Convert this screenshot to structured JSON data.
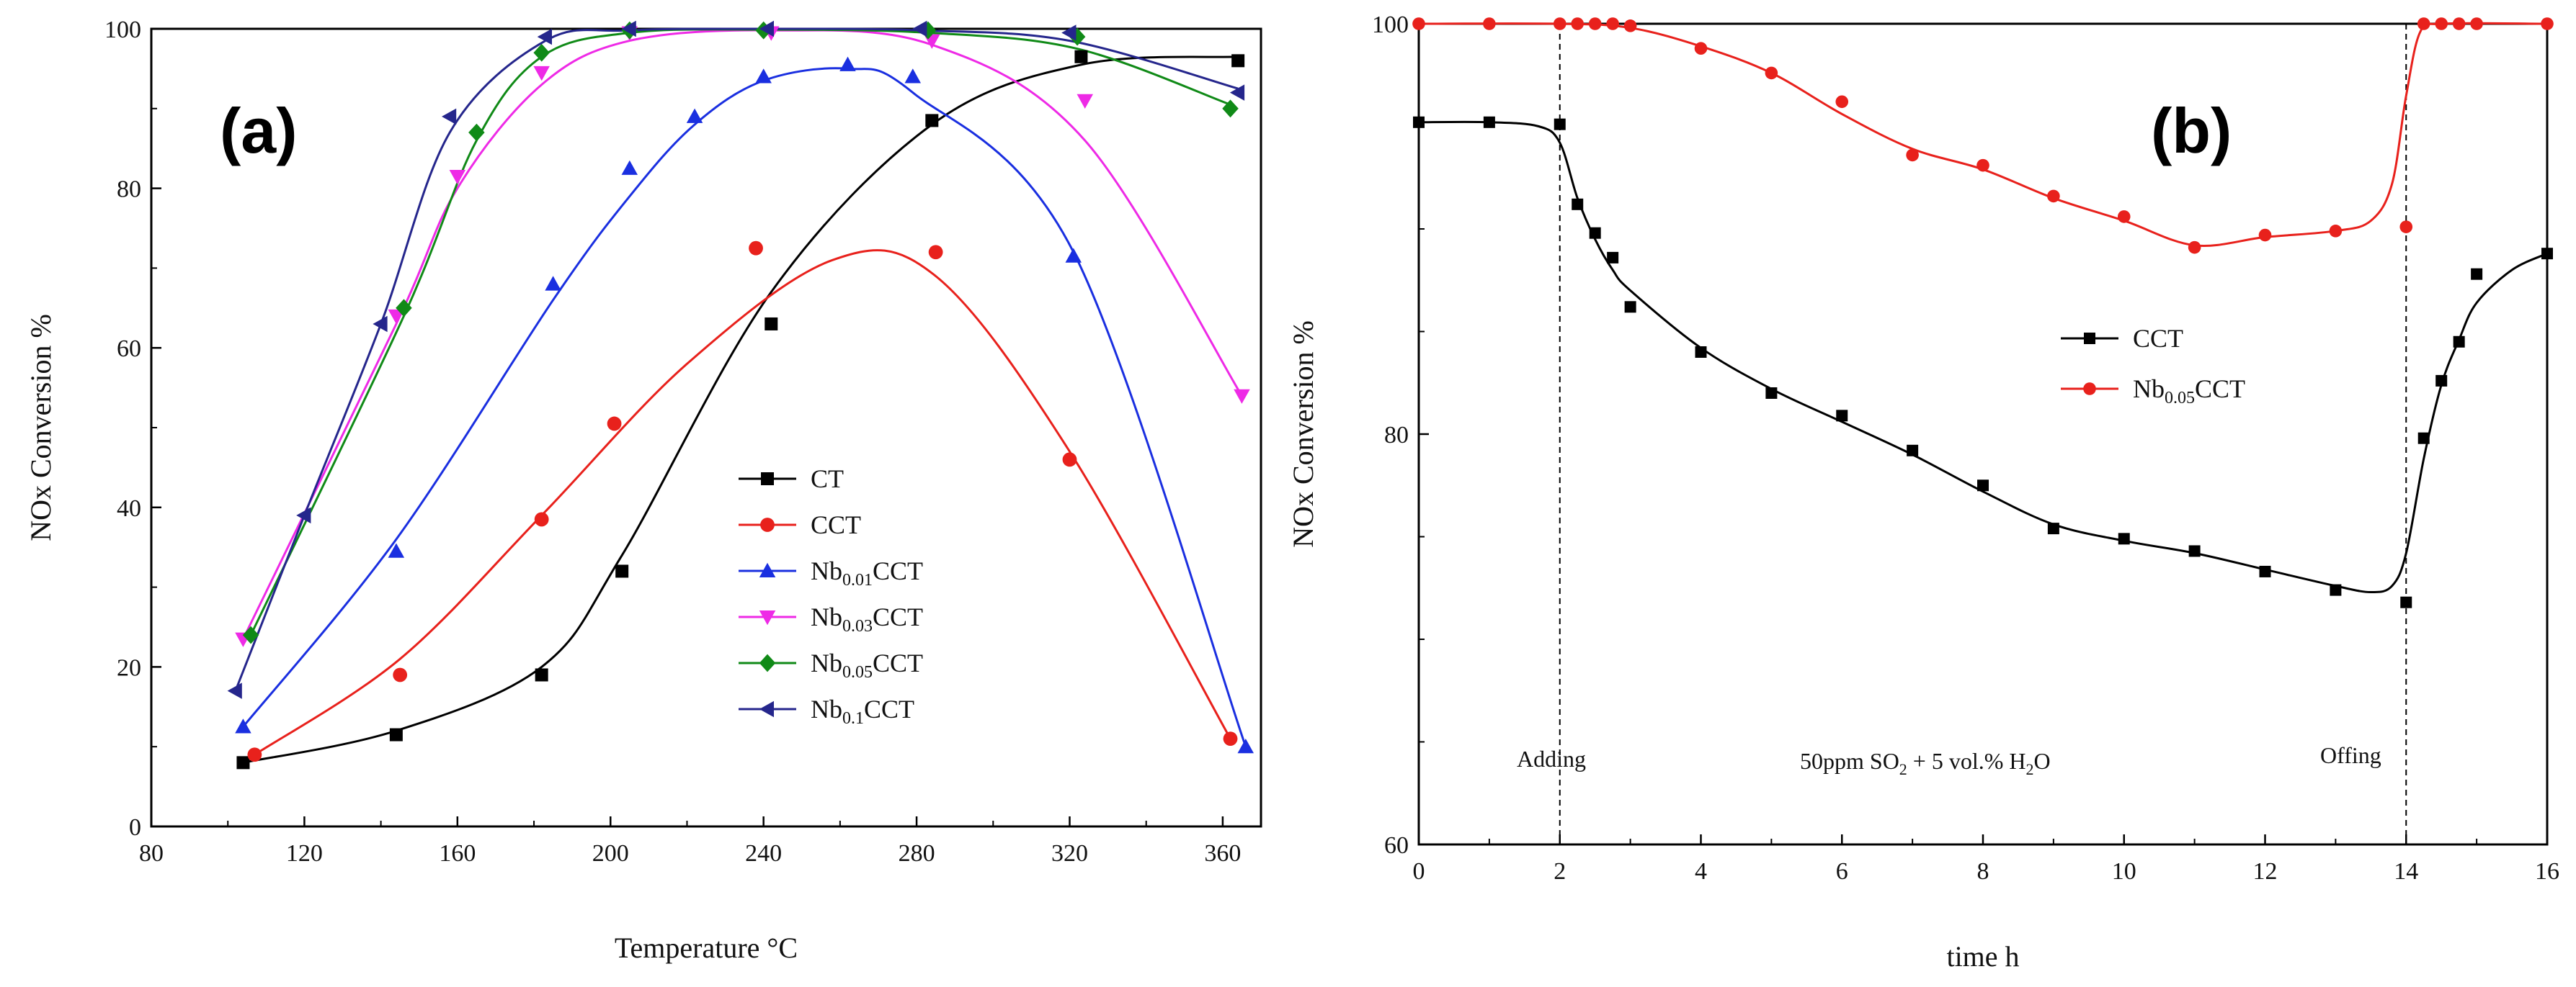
{
  "chart_data": [
    {
      "type": "line",
      "panel_label": "(a)",
      "title": "",
      "xlabel": "Temperature °C",
      "ylabel": "NOx Conversion %",
      "xlim": [
        80,
        370
      ],
      "ylim": [
        0,
        100
      ],
      "xticks": [
        80,
        120,
        160,
        200,
        240,
        280,
        320,
        360
      ],
      "yticks": [
        0,
        20,
        40,
        60,
        80,
        100
      ],
      "legend_position": "right-middle",
      "series": [
        {
          "name": "CT",
          "label_main": "CT",
          "label_sub": "",
          "label_tail": "",
          "color": "#000000",
          "marker": "square",
          "x": [
            104,
            144,
            182,
            203,
            242,
            284,
            323,
            364
          ],
          "y": [
            8,
            11.5,
            19,
            32,
            63,
            88.5,
            96.5,
            96
          ],
          "curve_x": [
            104,
            144,
            182,
            203,
            242,
            284,
            323,
            364
          ],
          "curve_y": [
            8,
            12,
            20,
            34,
            67,
            88,
            95.5,
            96.5
          ]
        },
        {
          "name": "CCT",
          "label_main": "CCT",
          "label_sub": "",
          "label_tail": "",
          "color": "#e8211c",
          "marker": "circle",
          "x": [
            107,
            145,
            182,
            201,
            238,
            285,
            320,
            362
          ],
          "y": [
            9,
            19,
            38.5,
            50.5,
            72.5,
            72,
            46,
            11
          ],
          "curve_x": [
            107,
            145,
            182,
            220,
            258,
            285,
            320,
            362
          ],
          "curve_y": [
            9,
            21,
            39,
            58,
            71,
            69,
            47,
            11
          ]
        },
        {
          "name": "Nb0.01CCT",
          "label_main": "Nb",
          "label_sub": "0.01",
          "label_tail": "CCT",
          "color": "#1a2fe0",
          "marker": "triangle-up",
          "x": [
            104,
            144,
            185,
            205,
            222,
            240,
            262,
            279,
            321,
            366
          ],
          "y": [
            12.5,
            34.5,
            68,
            82.5,
            89,
            94,
            95.5,
            94,
            71.5,
            10
          ],
          "curve_x": [
            104,
            144,
            185,
            205,
            222,
            240,
            262,
            279,
            321,
            366
          ],
          "curve_y": [
            12.5,
            36,
            66,
            79,
            88,
            93.5,
            95,
            92,
            72,
            10
          ]
        },
        {
          "name": "Nb0.03CCT",
          "label_main": "Nb",
          "label_sub": "0.03",
          "label_tail": "CCT",
          "color": "#ee2ae6",
          "marker": "triangle-down",
          "x": [
            104,
            144,
            160,
            182,
            205,
            242,
            284,
            324,
            365
          ],
          "y": [
            23.5,
            64,
            81.5,
            94.5,
            99.5,
            99.5,
            98.5,
            91,
            54
          ],
          "curve_x": [
            104,
            144,
            160,
            182,
            205,
            242,
            284,
            324,
            365
          ],
          "curve_y": [
            23.5,
            63,
            80,
            93,
            98.5,
            99.8,
            98,
            86,
            54
          ]
        },
        {
          "name": "Nb0.05CCT",
          "label_main": "Nb",
          "label_sub": "0.05",
          "label_tail": "CCT",
          "color": "#108a17",
          "marker": "diamond",
          "x": [
            106,
            146,
            165,
            182,
            205,
            240,
            283,
            322,
            362
          ],
          "y": [
            24,
            65,
            87,
            97,
            99.8,
            99.8,
            99.8,
            99,
            90
          ],
          "curve_x": [
            106,
            146,
            165,
            182,
            205,
            240,
            283,
            322,
            362
          ],
          "curve_y": [
            24,
            64,
            86,
            96.5,
            99.5,
            99.9,
            99.5,
            97.5,
            90.5
          ]
        },
        {
          "name": "Nb0.1CCT",
          "label_main": "Nb",
          "label_sub": "0.1",
          "label_tail": "CCT",
          "color": "#25268c",
          "marker": "triangle-left",
          "x": [
            102,
            120,
            140,
            158,
            183,
            205,
            241,
            281,
            320,
            364
          ],
          "y": [
            17,
            39,
            63,
            89,
            99,
            100,
            100,
            100,
            99.5,
            92
          ],
          "curve_x": [
            102,
            120,
            140,
            158,
            183,
            205,
            241,
            281,
            320,
            364
          ],
          "curve_y": [
            17,
            39,
            63,
            87,
            98.5,
            99.8,
            100,
            99.8,
            98.5,
            92.5
          ]
        }
      ]
    },
    {
      "type": "line",
      "panel_label": "(b)",
      "title": "",
      "xlabel": "time h",
      "ylabel": "NOx Conversion %",
      "xlim": [
        0,
        16
      ],
      "ylim": [
        60,
        100
      ],
      "xticks": [
        0,
        2,
        4,
        6,
        8,
        10,
        12,
        14,
        16
      ],
      "yticks": [
        60,
        80,
        100
      ],
      "legend_position": "center",
      "annotations": {
        "adding": {
          "text": "Adding",
          "x": 2
        },
        "offing": {
          "text": "Offing",
          "x": 14
        },
        "condition": {
          "pre": "50ppm SO",
          "sub1": "2",
          "mid": " + 5 vol.% H",
          "sub2": "2",
          "post": "O"
        }
      },
      "series": [
        {
          "name": "CCT",
          "label_main": "CCT",
          "label_sub": "",
          "label_tail": "",
          "color": "#000000",
          "marker": "square",
          "x": [
            0,
            1,
            2,
            2.25,
            2.5,
            2.75,
            3,
            4,
            5,
            6,
            7,
            8,
            9,
            10,
            11,
            12,
            13,
            14,
            14.25,
            14.5,
            14.75,
            15,
            16
          ],
          "y": [
            95.2,
            95.2,
            95.1,
            91.2,
            89.8,
            88.6,
            86.2,
            84,
            82,
            80.9,
            79.2,
            77.5,
            75.4,
            74.9,
            74.3,
            73.3,
            72.4,
            71.8,
            79.8,
            82.6,
            84.5,
            87.8,
            88.8
          ],
          "curve_x": [
            0,
            1,
            1.7,
            2,
            2.25,
            2.5,
            2.75,
            3,
            4,
            5,
            6,
            7,
            8,
            9,
            10,
            11,
            12,
            13,
            13.5,
            13.8,
            14,
            14.25,
            14.5,
            14.75,
            15,
            15.5,
            16
          ],
          "curve_y": [
            95.2,
            95.2,
            95,
            94.2,
            91.5,
            89.5,
            88,
            87,
            84.2,
            82.2,
            80.6,
            79,
            77.2,
            75.6,
            74.8,
            74.2,
            73.4,
            72.6,
            72.3,
            72.6,
            74.2,
            78.8,
            82.4,
            84.6,
            86.4,
            88,
            88.8
          ]
        },
        {
          "name": "Nb0.05CCT",
          "label_main": "Nb",
          "label_sub": "0.05",
          "label_tail": "CCT",
          "color": "#e8211c",
          "marker": "circle",
          "x": [
            0,
            1,
            2,
            2.25,
            2.5,
            2.75,
            3,
            4,
            5,
            6,
            7,
            8,
            9,
            10,
            11,
            12,
            13,
            14,
            14.25,
            14.5,
            14.75,
            15,
            16
          ],
          "y": [
            100,
            100,
            100,
            100,
            100,
            100,
            99.9,
            98.8,
            97.6,
            96.2,
            93.6,
            93.1,
            91.6,
            90.6,
            89.1,
            89.7,
            89.9,
            90.1,
            100,
            100,
            100,
            100,
            100
          ],
          "curve_x": [
            0,
            2,
            3,
            4,
            5,
            6,
            7,
            8,
            9,
            10,
            11,
            12,
            13,
            13.5,
            13.8,
            14,
            14.2,
            14.5,
            16
          ],
          "curve_y": [
            100,
            100,
            99.8,
            98.9,
            97.6,
            95.6,
            93.9,
            92.9,
            91.5,
            90.4,
            89.2,
            89.6,
            89.9,
            90.4,
            92.2,
            96.5,
            99.6,
            100,
            100
          ]
        }
      ]
    }
  ]
}
